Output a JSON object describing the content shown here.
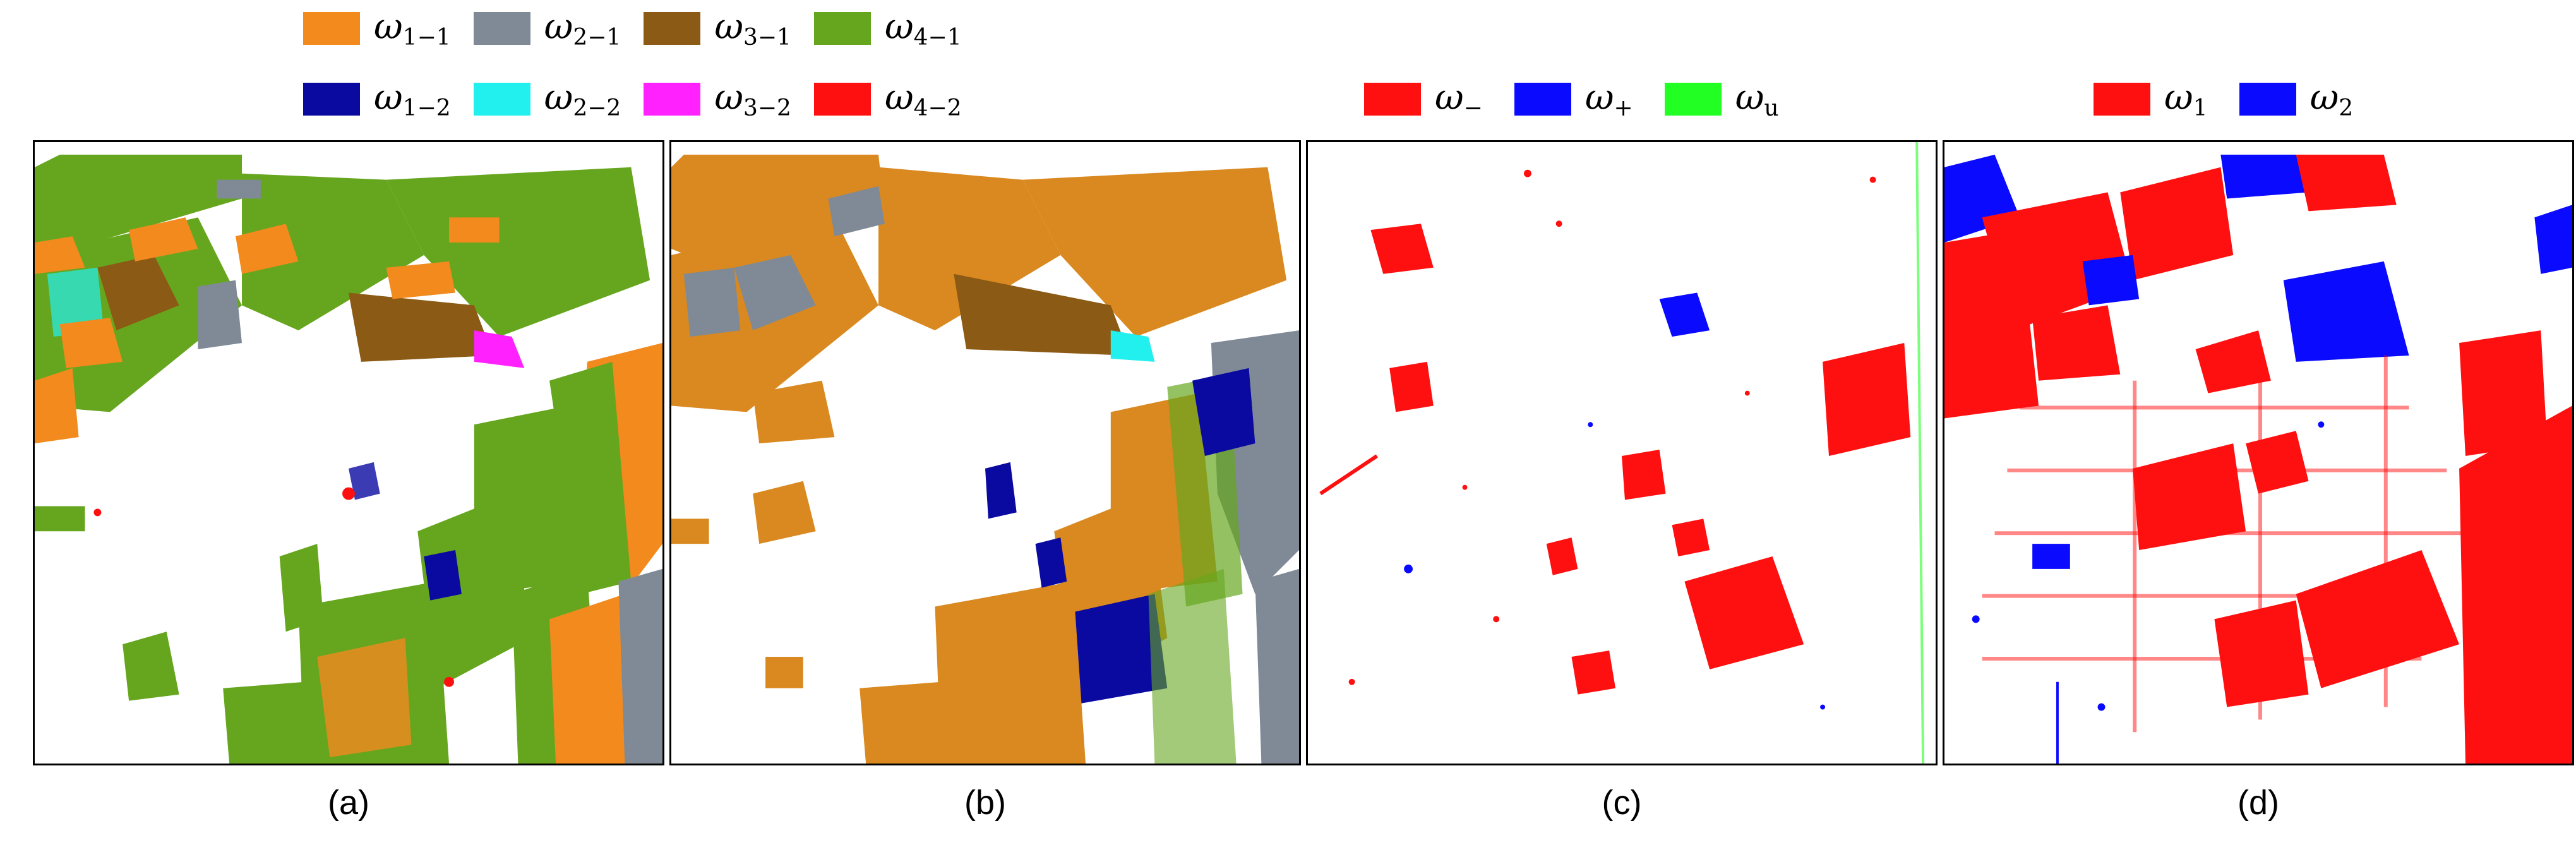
{
  "legend_a_b": {
    "row1": [
      {
        "sym": "ω",
        "sub": "1−1",
        "color": "#f28a1e",
        "icon": "orange-swatch"
      },
      {
        "sym": "ω",
        "sub": "2−1",
        "color": "#7f8a96",
        "icon": "gray-swatch"
      },
      {
        "sym": "ω",
        "sub": "3−1",
        "color": "#8b5a14",
        "icon": "brown-swatch"
      },
      {
        "sym": "ω",
        "sub": "4−1",
        "color": "#66a61e",
        "icon": "green-swatch"
      }
    ],
    "row2": [
      {
        "sym": "ω",
        "sub": "1−2",
        "color": "#0a0aa0",
        "icon": "navy-swatch"
      },
      {
        "sym": "ω",
        "sub": "2−2",
        "color": "#22f0ee",
        "icon": "cyan-swatch"
      },
      {
        "sym": "ω",
        "sub": "3−2",
        "color": "#ff22ff",
        "icon": "magenta-swatch"
      },
      {
        "sym": "ω",
        "sub": "4−2",
        "color": "#ff1010",
        "icon": "red-swatch"
      }
    ]
  },
  "legend_c": [
    {
      "sym": "ω",
      "sub": "−",
      "color": "#ff1010",
      "icon": "red-swatch"
    },
    {
      "sym": "ω",
      "sub": "+",
      "color": "#0a0aff",
      "icon": "blue-swatch"
    },
    {
      "sym": "ω",
      "sub": "u",
      "color": "#22ff22",
      "icon": "green-swatch"
    }
  ],
  "legend_d": [
    {
      "sym": "ω",
      "sub": "1",
      "color": "#ff1010",
      "icon": "red-swatch"
    },
    {
      "sym": "ω",
      "sub": "2",
      "color": "#0a0aff",
      "icon": "blue-swatch"
    }
  ],
  "captions": [
    "(a)",
    "(b)",
    "(c)",
    "(d)"
  ]
}
